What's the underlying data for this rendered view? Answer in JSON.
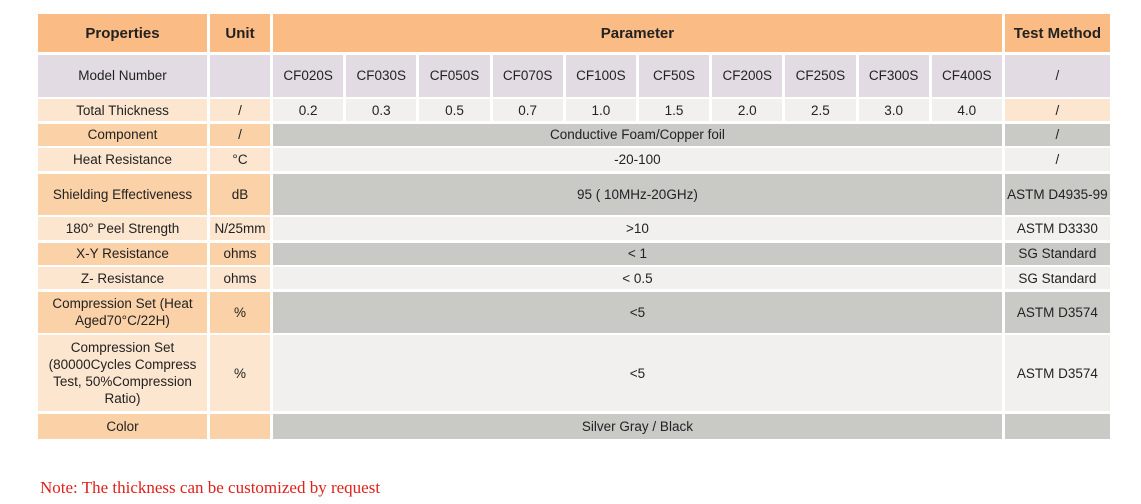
{
  "header": {
    "properties": "Properties",
    "unit": "Unit",
    "parameter": "Parameter",
    "test_method": "Test Method"
  },
  "models": {
    "label": "Model Number",
    "unit": "",
    "values": [
      "CF020S",
      "CF030S",
      "CF050S",
      "CF070S",
      "CF100S",
      "CF50S",
      "CF200S",
      "CF250S",
      "CF300S",
      "CF400S"
    ],
    "test": "/"
  },
  "thickness": {
    "label": "Total Thickness",
    "unit": "/",
    "values": [
      "0.2",
      "0.3",
      "0.5",
      "0.7",
      "1.0",
      "1.5",
      "2.0",
      "2.5",
      "3.0",
      "4.0"
    ],
    "test": "/"
  },
  "rows": [
    {
      "label": "Component",
      "unit": "/",
      "value": "Conductive Foam/Copper foil",
      "test": "/"
    },
    {
      "label": "Heat Resistance",
      "unit": "°C",
      "value": "-20-100",
      "test": "/"
    },
    {
      "label": "Shielding Effectiveness",
      "unit": "dB",
      "value": "95 ( 10MHz-20GHz)",
      "test": "ASTM D4935-99"
    },
    {
      "label": "180° Peel Strength",
      "unit": "N/25mm",
      "value": ">10",
      "test": "ASTM D3330"
    },
    {
      "label": "X-Y Resistance",
      "unit": "ohms",
      "value": "< 1",
      "test": "SG Standard"
    },
    {
      "label": "Z- Resistance",
      "unit": "ohms",
      "value": "< 0.5",
      "test": "SG Standard"
    },
    {
      "label": "Compression Set (Heat Aged70°C/22H)",
      "unit": "%",
      "value": "<5",
      "test": "ASTM D3574"
    },
    {
      "label": "Compression Set (80000Cycles Compress Test, 50%Compression Ratio)",
      "unit": "%",
      "value": "<5",
      "test": "ASTM D3574"
    },
    {
      "label": "Color",
      "unit": "",
      "value": "Silver Gray / Black",
      "test": ""
    }
  ],
  "note": "Note: The thickness can be customized by request"
}
